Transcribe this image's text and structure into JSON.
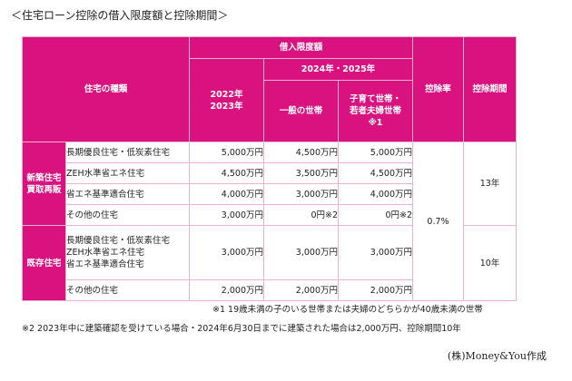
{
  "title": "＜住宅ローン控除の借入限度額と控除期間＞",
  "headers": {
    "house_type": "住宅の種類",
    "limit": "借入限度額",
    "years_2024_2025": "2024年・2025年",
    "years_2022_2023": [
      "2022年",
      "2023年"
    ],
    "general": "一般の世帯",
    "family": [
      "子育て世帯・",
      "若者夫婦世帯",
      "※1"
    ],
    "rate": "控除率",
    "period": "控除期間"
  },
  "categories": {
    "new": [
      "新築住宅",
      "買取再販"
    ],
    "existing": "既存住宅"
  },
  "rows": [
    {
      "type": "長期優良住宅・低炭素住宅",
      "y2022": "5,000万円",
      "general": "4,500万円",
      "family": "5,000万円"
    },
    {
      "type": "ZEH水準省エネ住宅",
      "y2022": "4,500万円",
      "general": "3,500万円",
      "family": "4,500万円"
    },
    {
      "type": "省エネ基準適合住宅",
      "y2022": "4,000万円",
      "general": "3,000万円",
      "family": "4,000万円"
    },
    {
      "type": "その他の住宅",
      "y2022": "3,000万円",
      "general": "0円※2",
      "family": "0円※2"
    }
  ],
  "existing_rows": {
    "types": [
      "長期優良住宅・低炭素住宅",
      "ZEH水準省エネ住宅",
      "省エネ基準適合住宅"
    ],
    "y2022": "3,000万円",
    "general": "3,000万円",
    "family": "3,000万円",
    "other": {
      "type": "その他の住宅",
      "y2022": "2,000万円",
      "general": "2,000万円",
      "family": "2,000万円"
    }
  },
  "rate": "0.7%",
  "period_new": "13年",
  "period_existing": "10年",
  "notes": {
    "note1": "※1 19歳未満の子のいる世帯または夫婦のどちらかが40歳未満の世帯",
    "note2": "※2 2023年中に建築確認を受けている場合・2024年6月30日までに建築された場合は2,000万円、控除期間10年"
  },
  "credit": "(株)Money&You作成",
  "colors": {
    "header": "#d9127f",
    "border": "#e7b3d1"
  }
}
